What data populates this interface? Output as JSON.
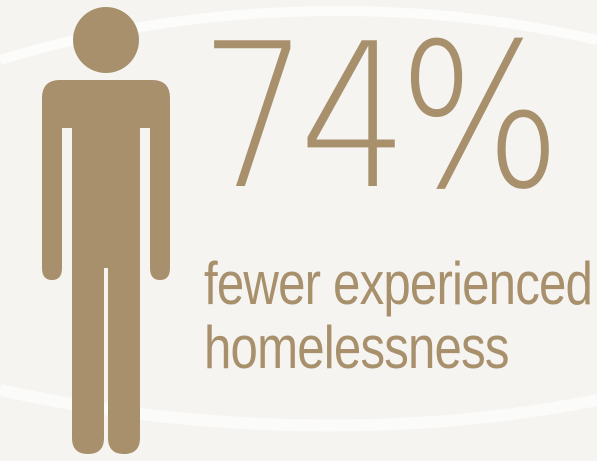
{
  "colors": {
    "accent": "#a8906d",
    "background": "#f6f4f1"
  },
  "icon": "person-icon",
  "stat": {
    "value": "74%",
    "caption_line_1": "fewer experienced",
    "caption_line_2": "homelessness"
  }
}
